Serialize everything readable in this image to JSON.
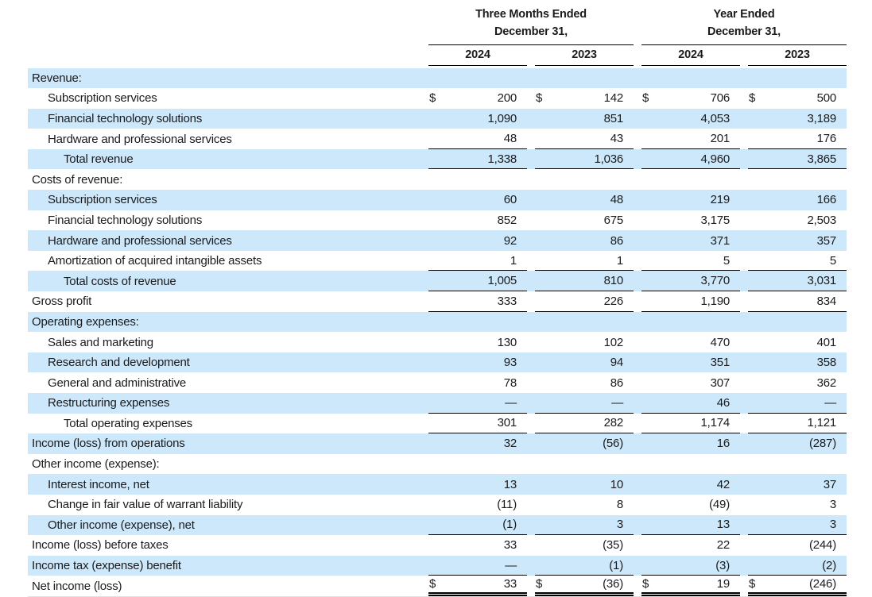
{
  "document": {
    "type": "condensed-income-statement"
  },
  "colors": {
    "row_highlight": "#cce8fa",
    "text": "#1b1b1d",
    "rule_line": "#000000"
  },
  "header": {
    "group1": {
      "line1": "Three Months Ended",
      "line2": "December 31,"
    },
    "group2": {
      "line1": "Year Ended",
      "line2": "December 31,"
    },
    "years": [
      "2024",
      "2023",
      "2024",
      "2023"
    ]
  },
  "table": {
    "currency_symbol": "$",
    "rows": [
      {
        "label": "Revenue:",
        "indent": 0,
        "highlight": true,
        "dollar": false,
        "underline": "none",
        "values": [
          "",
          "",
          "",
          ""
        ]
      },
      {
        "label": "Subscription services",
        "indent": 1,
        "highlight": false,
        "dollar": true,
        "underline": "none",
        "values": [
          "200",
          "142",
          "706",
          "500"
        ]
      },
      {
        "label": "Financial technology solutions",
        "indent": 1,
        "highlight": true,
        "dollar": false,
        "underline": "none",
        "values": [
          "1,090",
          "851",
          "4,053",
          "3,189"
        ]
      },
      {
        "label": "Hardware and professional services",
        "indent": 1,
        "highlight": false,
        "dollar": false,
        "underline": "single",
        "values": [
          "48",
          "43",
          "201",
          "176"
        ]
      },
      {
        "label": "Total revenue",
        "indent": 2,
        "highlight": true,
        "dollar": false,
        "underline": "single",
        "values": [
          "1,338",
          "1,036",
          "4,960",
          "3,865"
        ]
      },
      {
        "label": "Costs of revenue:",
        "indent": 0,
        "highlight": false,
        "dollar": false,
        "underline": "none",
        "values": [
          "",
          "",
          "",
          ""
        ]
      },
      {
        "label": "Subscription services",
        "indent": 1,
        "highlight": true,
        "dollar": false,
        "underline": "none",
        "values": [
          "60",
          "48",
          "219",
          "166"
        ]
      },
      {
        "label": "Financial technology solutions",
        "indent": 1,
        "highlight": false,
        "dollar": false,
        "underline": "none",
        "values": [
          "852",
          "675",
          "3,175",
          "2,503"
        ]
      },
      {
        "label": "Hardware and professional services",
        "indent": 1,
        "highlight": true,
        "dollar": false,
        "underline": "none",
        "values": [
          "92",
          "86",
          "371",
          "357"
        ]
      },
      {
        "label": "Amortization of acquired intangible assets",
        "indent": 1,
        "highlight": false,
        "dollar": false,
        "underline": "single",
        "values": [
          "1",
          "1",
          "5",
          "5"
        ]
      },
      {
        "label": "Total costs of revenue",
        "indent": 2,
        "highlight": true,
        "dollar": false,
        "underline": "single",
        "values": [
          "1,005",
          "810",
          "3,770",
          "3,031"
        ]
      },
      {
        "label": "Gross profit",
        "indent": 0,
        "highlight": false,
        "dollar": false,
        "underline": "single",
        "values": [
          "333",
          "226",
          "1,190",
          "834"
        ]
      },
      {
        "label": "Operating expenses:",
        "indent": 0,
        "highlight": true,
        "dollar": false,
        "underline": "none",
        "values": [
          "",
          "",
          "",
          ""
        ]
      },
      {
        "label": "Sales and marketing",
        "indent": 1,
        "highlight": false,
        "dollar": false,
        "underline": "none",
        "values": [
          "130",
          "102",
          "470",
          "401"
        ]
      },
      {
        "label": "Research and development",
        "indent": 1,
        "highlight": true,
        "dollar": false,
        "underline": "none",
        "values": [
          "93",
          "94",
          "351",
          "358"
        ]
      },
      {
        "label": "General and administrative",
        "indent": 1,
        "highlight": false,
        "dollar": false,
        "underline": "none",
        "values": [
          "78",
          "86",
          "307",
          "362"
        ]
      },
      {
        "label": "Restructuring expenses",
        "indent": 1,
        "highlight": true,
        "dollar": false,
        "underline": "single",
        "values": [
          "—",
          "—",
          "46",
          "—"
        ]
      },
      {
        "label": "Total operating expenses",
        "indent": 2,
        "highlight": false,
        "dollar": false,
        "underline": "single",
        "values": [
          "301",
          "282",
          "1,174",
          "1,121"
        ]
      },
      {
        "label": "Income (loss) from operations",
        "indent": 0,
        "highlight": true,
        "dollar": false,
        "underline": "none",
        "values": [
          "32",
          "(56)",
          "16",
          "(287)"
        ]
      },
      {
        "label": "Other income (expense):",
        "indent": 0,
        "highlight": false,
        "dollar": false,
        "underline": "none",
        "values": [
          "",
          "",
          "",
          ""
        ]
      },
      {
        "label": "Interest income, net",
        "indent": 1,
        "highlight": true,
        "dollar": false,
        "underline": "none",
        "values": [
          "13",
          "10",
          "42",
          "37"
        ]
      },
      {
        "label": "Change in fair value of warrant liability",
        "indent": 1,
        "highlight": false,
        "dollar": false,
        "underline": "none",
        "values": [
          "(11)",
          "8",
          "(49)",
          "3"
        ]
      },
      {
        "label": "Other income (expense), net",
        "indent": 1,
        "highlight": true,
        "dollar": false,
        "underline": "single",
        "values": [
          "(1)",
          "3",
          "13",
          "3"
        ]
      },
      {
        "label": "Income (loss) before taxes",
        "indent": 0,
        "highlight": false,
        "dollar": false,
        "underline": "none",
        "values": [
          "33",
          "(35)",
          "22",
          "(244)"
        ]
      },
      {
        "label": "Income tax (expense) benefit",
        "indent": 0,
        "highlight": true,
        "dollar": false,
        "underline": "single",
        "values": [
          "—",
          "(1)",
          "(3)",
          "(2)"
        ]
      },
      {
        "label": "Net income (loss)",
        "indent": 0,
        "highlight": false,
        "dollar": true,
        "underline": "double",
        "values": [
          "33",
          "(36)",
          "19",
          "(246)"
        ]
      }
    ]
  }
}
